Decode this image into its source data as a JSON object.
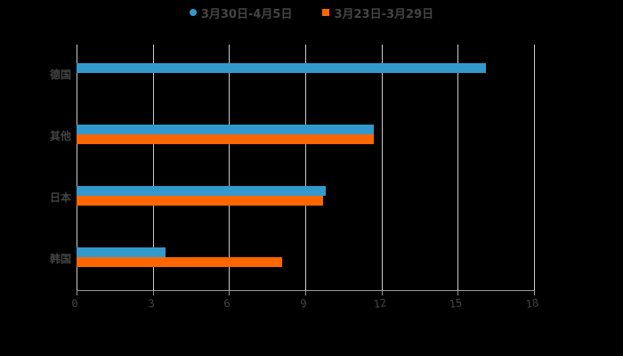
{
  "chart_data": {
    "type": "bar",
    "orientation": "horizontal",
    "title": "",
    "xlabel": "",
    "ylabel": "",
    "categories": [
      "德国",
      "其他",
      "日本",
      "韩国"
    ],
    "series": [
      {
        "name": "3月30日-4月5日",
        "color": "#3399CC",
        "marker": "circle",
        "values": [
          16.1,
          11.7,
          9.8,
          3.5
        ]
      },
      {
        "name": "3月23日-3月29日",
        "color": "#FF6600",
        "marker": "square",
        "values": [
          null,
          11.7,
          9.7,
          8.1
        ]
      }
    ],
    "xlim": [
      0,
      18
    ],
    "x_ticks": [
      "0",
      "3",
      "6",
      "9",
      "12",
      "15",
      "18"
    ],
    "grid": true,
    "legend_position": "top"
  },
  "colors": {
    "background": "#000000",
    "text": "#444444",
    "grid": "#cccccc"
  }
}
